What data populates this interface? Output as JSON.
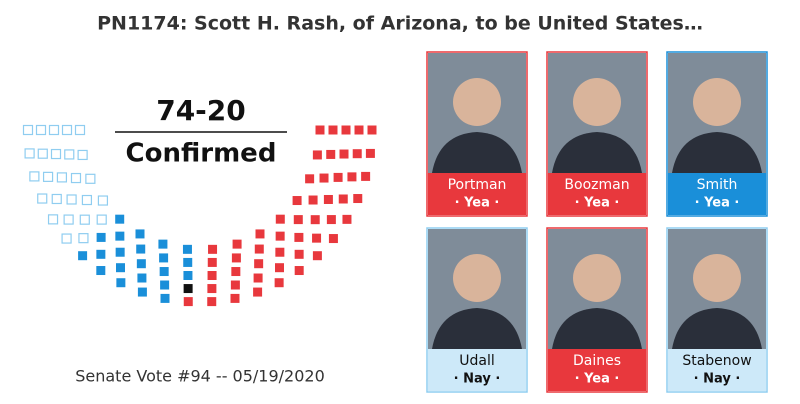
{
  "title": "PN1174: Scott H. Rash, of Arizona, to be United States…",
  "tally": "74-20",
  "result": "Confirmed",
  "footer": "Senate Vote #94 -- 05/19/2020",
  "hemicycle": {
    "segments": [
      {
        "count": 26,
        "color": "#8fcdf0",
        "filled": false
      },
      {
        "count": 22,
        "color": "#1a8fd9",
        "filled": true
      },
      {
        "count": 1,
        "color": "#111111",
        "filled": true
      },
      {
        "count": 51,
        "color": "#e8383d",
        "filled": true
      }
    ]
  },
  "senators": [
    {
      "name": "Portman",
      "vote": "· Yea ·",
      "color": "#e8383d",
      "text_color": "#ffffff"
    },
    {
      "name": "Boozman",
      "vote": "· Yea ·",
      "color": "#e8383d",
      "text_color": "#ffffff"
    },
    {
      "name": "Smith",
      "vote": "· Yea ·",
      "color": "#1a8fd9",
      "text_color": "#ffffff"
    },
    {
      "name": "Udall",
      "vote": "· Nay ·",
      "color": "#cde9f9",
      "text_color": "#111111"
    },
    {
      "name": "Daines",
      "vote": "· Yea ·",
      "color": "#e8383d",
      "text_color": "#ffffff"
    },
    {
      "name": "Stabenow",
      "vote": "· Nay ·",
      "color": "#cde9f9",
      "text_color": "#111111"
    }
  ]
}
